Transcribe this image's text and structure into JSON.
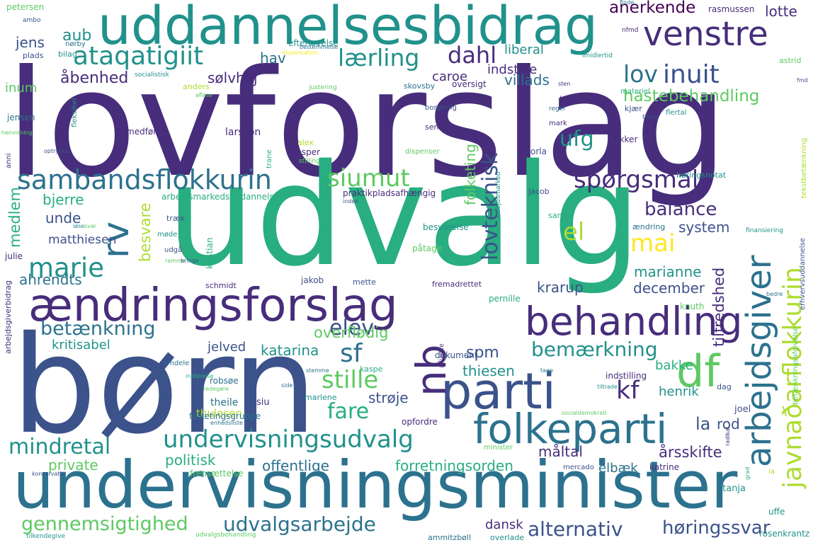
{
  "palette": {
    "c0": "#440154",
    "c1": "#472d7b",
    "c2": "#3b528b",
    "c3": "#2c728e",
    "c4": "#21918c",
    "c5": "#28ae80",
    "c6": "#5ec962",
    "c7": "#addc30",
    "c8": "#fde725"
  },
  "words": [
    {
      "text": "lovforslag",
      "color": "c1"
    },
    {
      "text": "udvalg",
      "color": "c5"
    },
    {
      "text": "børn",
      "color": "c2"
    },
    {
      "text": "undervisningsminister",
      "color": "c3"
    },
    {
      "text": "uddannelsesbidrag",
      "color": "c4"
    },
    {
      "text": "ændringsforslag",
      "color": "c1"
    },
    {
      "text": "parti",
      "color": "c2"
    },
    {
      "text": "behandling",
      "color": "c1"
    },
    {
      "text": "folkeparti",
      "color": "c3"
    },
    {
      "text": "venstre",
      "color": "c1"
    },
    {
      "text": "sambandsflokkurin",
      "color": "c3"
    },
    {
      "text": "ataqatigiit",
      "color": "c4"
    },
    {
      "text": "df",
      "color": "c6"
    },
    {
      "text": "nb",
      "color": "c1"
    },
    {
      "text": "rv",
      "color": "c3"
    },
    {
      "text": "arbejdsgiver",
      "color": "c3"
    },
    {
      "text": "javnaðarflokkurin",
      "color": "c7"
    },
    {
      "text": "undervisningsudvalg",
      "color": "c4"
    },
    {
      "text": "marie",
      "color": "c4"
    },
    {
      "text": "siumut",
      "color": "c6"
    },
    {
      "text": "spørgsmål",
      "color": "c1"
    },
    {
      "text": "inuit",
      "color": "c2"
    },
    {
      "text": "lærling",
      "color": "c4"
    },
    {
      "text": "lov",
      "color": "c3"
    },
    {
      "text": "lovteknisk",
      "color": "c2"
    },
    {
      "text": "dahl",
      "color": "c1"
    },
    {
      "text": "mindretal",
      "color": "c4"
    },
    {
      "text": "gennemsigtighed",
      "color": "c6"
    },
    {
      "text": "udvalgsarbejde",
      "color": "c3"
    },
    {
      "text": "alternativ",
      "color": "c2"
    },
    {
      "text": "høringssvar",
      "color": "c2"
    },
    {
      "text": "stille",
      "color": "c6"
    },
    {
      "text": "sf",
      "color": "c3"
    },
    {
      "text": "kf",
      "color": "c1"
    },
    {
      "text": "fare",
      "color": "c5"
    },
    {
      "text": "elev",
      "color": "c2"
    },
    {
      "text": "betænkning",
      "color": "c3"
    },
    {
      "text": "bemærkning",
      "color": "c4"
    },
    {
      "text": "mai",
      "color": "c8"
    },
    {
      "text": "el",
      "color": "c7"
    },
    {
      "text": "balance",
      "color": "c1"
    },
    {
      "text": "ufg",
      "color": "c4"
    },
    {
      "text": "anerkende",
      "color": "c0"
    },
    {
      "text": "hastebehandling",
      "color": "c6"
    },
    {
      "text": "indstille",
      "color": "c1"
    },
    {
      "text": "villads",
      "color": "c3"
    },
    {
      "text": "liberal",
      "color": "c4"
    },
    {
      "text": "sølvhøj",
      "color": "c1"
    },
    {
      "text": "åbenhed",
      "color": "c1"
    },
    {
      "text": "caroe",
      "color": "c1"
    },
    {
      "text": "hav",
      "color": "c3"
    },
    {
      "text": "inum",
      "color": "c6"
    },
    {
      "text": "aub",
      "color": "c4"
    },
    {
      "text": "jens",
      "color": "c2"
    },
    {
      "text": "lotte",
      "color": "c1"
    },
    {
      "text": "rasmussen",
      "color": "c1"
    },
    {
      "text": "tilfredshed",
      "color": "c1"
    },
    {
      "text": "overflødig",
      "color": "c6"
    },
    {
      "text": "katarina",
      "color": "c4"
    },
    {
      "text": "jelved",
      "color": "c2"
    },
    {
      "text": "kritisabel",
      "color": "c4"
    },
    {
      "text": "ahrendts",
      "color": "c3"
    },
    {
      "text": "medlem",
      "color": "c5"
    },
    {
      "text": "bjerre",
      "color": "c5"
    },
    {
      "text": "unde",
      "color": "c2"
    },
    {
      "text": "besvare",
      "color": "c7"
    },
    {
      "text": "folketing",
      "color": "c6"
    },
    {
      "text": "matthiesen",
      "color": "c2"
    },
    {
      "text": "system",
      "color": "c2"
    },
    {
      "text": "marianne",
      "color": "c4"
    },
    {
      "text": "december",
      "color": "c2"
    },
    {
      "text": "krarup",
      "color": "c2"
    },
    {
      "text": "spm",
      "color": "c2"
    },
    {
      "text": "thiesen",
      "color": "c4"
    },
    {
      "text": "bakke",
      "color": "c5"
    },
    {
      "text": "henrik",
      "color": "c4"
    },
    {
      "text": "strøje",
      "color": "c2"
    },
    {
      "text": "la",
      "color": "c2"
    },
    {
      "text": "rod",
      "color": "c2"
    },
    {
      "text": "måltal",
      "color": "c1"
    },
    {
      "text": "elbæk",
      "color": "c3"
    },
    {
      "text": "årsskifte",
      "color": "c1"
    },
    {
      "text": "politisk",
      "color": "c5"
    },
    {
      "text": "private",
      "color": "c6"
    },
    {
      "text": "offentlige",
      "color": "c3"
    },
    {
      "text": "forretningsorden",
      "color": "c5"
    },
    {
      "text": "dansk",
      "color": "c1"
    },
    {
      "text": "theile",
      "color": "c3"
    },
    {
      "text": "siu",
      "color": "c1"
    },
    {
      "text": "thulesen",
      "color": "c7"
    },
    {
      "text": "joel",
      "color": "c2"
    },
    {
      "text": "tanja",
      "color": "c4"
    },
    {
      "text": "uffe",
      "color": "c4"
    },
    {
      "text": "katrine",
      "color": "c1"
    },
    {
      "text": "mercado",
      "color": "c2"
    },
    {
      "text": "rosenkrantz",
      "color": "c4"
    },
    {
      "text": "ammitzbøll",
      "color": "c3"
    },
    {
      "text": "overlade",
      "color": "c4"
    },
    {
      "text": "udvalgsbehandling",
      "color": "c6"
    },
    {
      "text": "tilkendegive",
      "color": "c4"
    },
    {
      "text": "frensættelse",
      "color": "c6"
    },
    {
      "text": "konservativ",
      "color": "c2"
    },
    {
      "text": "enhedsliste",
      "color": "c3"
    },
    {
      "text": "folketingsgruppe",
      "color": "c3"
    },
    {
      "text": "opfordre",
      "color": "c1"
    },
    {
      "text": "marlene",
      "color": "c4"
    },
    {
      "text": "robsøe",
      "color": "c3"
    },
    {
      "text": "redegøre",
      "color": "c6"
    },
    {
      "text": "omdele",
      "color": "c3"
    },
    {
      "text": "indførelse",
      "color": "c5"
    },
    {
      "text": "arbejdsgiverbidrag",
      "color": "c1"
    },
    {
      "text": "stemme",
      "color": "c3"
    },
    {
      "text": "side",
      "color": "c3"
    },
    {
      "text": "kaspe",
      "color": "c5"
    },
    {
      "text": "dokument",
      "color": "c2"
    },
    {
      "text": "alliance",
      "color": "c1"
    },
    {
      "text": "tage",
      "color": "c3"
    },
    {
      "text": "indstilling",
      "color": "c1"
    },
    {
      "text": "tiltrade",
      "color": "c4"
    },
    {
      "text": "dag",
      "color": "c2"
    },
    {
      "text": "socialdemokrati",
      "color": "c6"
    },
    {
      "text": "minister",
      "color": "c6"
    },
    {
      "text": "radikal",
      "color": "c1"
    },
    {
      "text": "grad",
      "color": "c5"
    },
    {
      "text": "ia",
      "color": "c7"
    },
    {
      "text": "betænkningsafgivelse",
      "color": "c6"
    },
    {
      "text": "erhvervsuddannelse",
      "color": "c2"
    },
    {
      "text": "knuth",
      "color": "c6"
    },
    {
      "text": "bedre",
      "color": "c3"
    },
    {
      "text": "pernille",
      "color": "c5"
    },
    {
      "text": "fremadrettet",
      "color": "c1"
    },
    {
      "text": "mette",
      "color": "c2"
    },
    {
      "text": "jakob",
      "color": "c2"
    },
    {
      "text": "schmidt",
      "color": "c1"
    },
    {
      "text": "kristian",
      "color": "c5"
    },
    {
      "text": "udgå",
      "color": "c2"
    },
    {
      "text": "møde",
      "color": "c4"
    },
    {
      "text": "ramme",
      "color": "c6"
    },
    {
      "text": "bringe",
      "color": "c2"
    },
    {
      "text": "påtage",
      "color": "c6"
    },
    {
      "text": "julie",
      "color": "c1"
    },
    {
      "text": "løse",
      "color": "c4"
    },
    {
      "text": "svar",
      "color": "c6"
    },
    {
      "text": "træk",
      "color": "c2"
    },
    {
      "text": "besvarelse",
      "color": "c4"
    },
    {
      "text": "sand",
      "color": "c5"
    },
    {
      "text": "ændring",
      "color": "c3"
    },
    {
      "text": "finansiering",
      "color": "c4"
    },
    {
      "text": "arbejdsmarked",
      "color": "c4"
    },
    {
      "text": "inden",
      "color": "c2"
    },
    {
      "text": "praktikpladsafhængig",
      "color": "c1"
    },
    {
      "text": "jacob",
      "color": "c2"
    },
    {
      "text": "arbejdsmarkedsuddannelse",
      "color": "c5"
    },
    {
      "text": "stilling",
      "color": "c6"
    },
    {
      "text": "jesper",
      "color": "c1"
    },
    {
      "text": "alex",
      "color": "c7"
    },
    {
      "text": "larsson",
      "color": "c1"
    },
    {
      "text": "medfør",
      "color": "c1"
    },
    {
      "text": "sende",
      "color": "c1"
    },
    {
      "text": "trane",
      "color": "c5"
    },
    {
      "text": "dispenser",
      "color": "c6"
    },
    {
      "text": "orla",
      "color": "c2"
    },
    {
      "text": "sikker",
      "color": "c1"
    },
    {
      "text": "mark",
      "color": "c1"
    },
    {
      "text": "høringsnotat",
      "color": "c4"
    },
    {
      "text": "tekstbetænkning",
      "color": "c7"
    },
    {
      "text": "anni",
      "color": "c1"
    },
    {
      "text": "optrykke",
      "color": "c2"
    },
    {
      "text": "henvisning",
      "color": "c6"
    },
    {
      "text": "jensen",
      "color": "c3"
    },
    {
      "text": "fleksibel",
      "color": "c4"
    },
    {
      "text": "afløse",
      "color": "c6"
    },
    {
      "text": "borgerlig",
      "color": "c2"
    },
    {
      "text": "regel",
      "color": "c3"
    },
    {
      "text": "kjær",
      "color": "c2"
    },
    {
      "text": "tiltag",
      "color": "c2"
    },
    {
      "text": "flertal",
      "color": "c4"
    },
    {
      "text": "kronborg",
      "color": "c1"
    },
    {
      "text": "sten",
      "color": "c1"
    },
    {
      "text": "materiel",
      "color": "c5"
    },
    {
      "text": "fmd",
      "color": "c2"
    },
    {
      "text": "astrid",
      "color": "c6"
    },
    {
      "text": "skovsby",
      "color": "c3"
    },
    {
      "text": "oversigt",
      "color": "c1"
    },
    {
      "text": "justering",
      "color": "c6"
    },
    {
      "text": "anders",
      "color": "c7"
    },
    {
      "text": "socialistisk",
      "color": "c4"
    },
    {
      "text": "dispensation",
      "color": "c8"
    },
    {
      "text": "plads",
      "color": "c2"
    },
    {
      "text": "bilag",
      "color": "c4"
    },
    {
      "text": "efterlevelse",
      "color": "c4"
    },
    {
      "text": "bestemmelse",
      "color": "c3"
    },
    {
      "text": "nørby",
      "color": "c3"
    },
    {
      "text": "ambo",
      "color": "c2"
    },
    {
      "text": "petersen",
      "color": "c6"
    },
    {
      "text": "nfmd",
      "color": "c1"
    },
    {
      "text": "imidlertid",
      "color": "c4"
    },
    {
      "text": "finde",
      "color": "c3"
    }
  ]
}
